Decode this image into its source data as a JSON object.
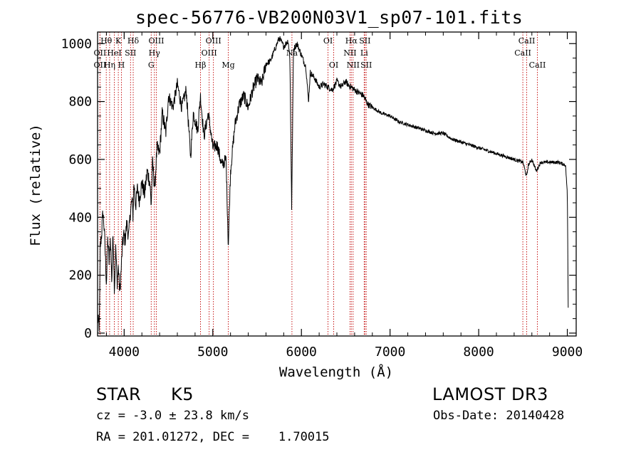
{
  "chart_data": {
    "type": "line",
    "title": "spec-56776-VB200N03V1_sp07-101.fits",
    "xlabel": "Wavelength (Å)",
    "ylabel": "Flux (relative)",
    "xlim": [
      3700,
      9100
    ],
    "ylim": [
      -10,
      1040
    ],
    "xticks": [
      4000,
      5000,
      6000,
      7000,
      8000,
      9000
    ],
    "yticks": [
      0,
      200,
      400,
      600,
      800,
      1000
    ],
    "spectrum_key_points": [
      [
        3700,
        50
      ],
      [
        3720,
        20
      ],
      [
        3730,
        300
      ],
      [
        3745,
        340
      ],
      [
        3760,
        420
      ],
      [
        3775,
        360
      ],
      [
        3790,
        250
      ],
      [
        3800,
        170
      ],
      [
        3815,
        330
      ],
      [
        3830,
        240
      ],
      [
        3845,
        330
      ],
      [
        3860,
        180
      ],
      [
        3875,
        350
      ],
      [
        3890,
        150
      ],
      [
        3905,
        300
      ],
      [
        3920,
        170
      ],
      [
        3935,
        230
      ],
      [
        3950,
        140
      ],
      [
        3965,
        210
      ],
      [
        3980,
        300
      ],
      [
        3995,
        340
      ],
      [
        4010,
        320
      ],
      [
        4030,
        380
      ],
      [
        4050,
        330
      ],
      [
        4070,
        420
      ],
      [
        4090,
        460
      ],
      [
        4100,
        400
      ],
      [
        4110,
        520
      ],
      [
        4130,
        440
      ],
      [
        4150,
        500
      ],
      [
        4170,
        460
      ],
      [
        4200,
        520
      ],
      [
        4230,
        480
      ],
      [
        4260,
        560
      ],
      [
        4290,
        520
      ],
      [
        4305,
        440
      ],
      [
        4320,
        590
      ],
      [
        4345,
        500
      ],
      [
        4370,
        640
      ],
      [
        4400,
        620
      ],
      [
        4430,
        760
      ],
      [
        4470,
        690
      ],
      [
        4500,
        820
      ],
      [
        4550,
        780
      ],
      [
        4600,
        860
      ],
      [
        4650,
        780
      ],
      [
        4700,
        840
      ],
      [
        4730,
        700
      ],
      [
        4750,
        610
      ],
      [
        4780,
        760
      ],
      [
        4830,
        700
      ],
      [
        4860,
        820
      ],
      [
        4900,
        680
      ],
      [
        4950,
        760
      ],
      [
        5000,
        640
      ],
      [
        5050,
        650
      ],
      [
        5100,
        580
      ],
      [
        5150,
        600
      ],
      [
        5175,
        300
      ],
      [
        5200,
        560
      ],
      [
        5250,
        720
      ],
      [
        5300,
        790
      ],
      [
        5350,
        820
      ],
      [
        5400,
        780
      ],
      [
        5450,
        840
      ],
      [
        5500,
        880
      ],
      [
        5550,
        860
      ],
      [
        5600,
        930
      ],
      [
        5650,
        940
      ],
      [
        5700,
        980
      ],
      [
        5750,
        1020
      ],
      [
        5800,
        990
      ],
      [
        5850,
        1010
      ],
      [
        5870,
        950
      ],
      [
        5890,
        430
      ],
      [
        5910,
        980
      ],
      [
        5950,
        1000
      ],
      [
        6000,
        960
      ],
      [
        6050,
        920
      ],
      [
        6080,
        800
      ],
      [
        6100,
        900
      ],
      [
        6150,
        880
      ],
      [
        6200,
        850
      ],
      [
        6250,
        860
      ],
      [
        6300,
        850
      ],
      [
        6350,
        840
      ],
      [
        6400,
        870
      ],
      [
        6450,
        850
      ],
      [
        6500,
        870
      ],
      [
        6520,
        860
      ],
      [
        6560,
        850
      ],
      [
        6600,
        840
      ],
      [
        6650,
        830
      ],
      [
        6700,
        820
      ],
      [
        6750,
        790
      ],
      [
        6800,
        780
      ],
      [
        6900,
        760
      ],
      [
        7000,
        750
      ],
      [
        7100,
        730
      ],
      [
        7200,
        720
      ],
      [
        7300,
        710
      ],
      [
        7400,
        700
      ],
      [
        7500,
        690
      ],
      [
        7600,
        690
      ],
      [
        7700,
        670
      ],
      [
        7800,
        660
      ],
      [
        7900,
        650
      ],
      [
        8000,
        640
      ],
      [
        8100,
        630
      ],
      [
        8200,
        620
      ],
      [
        8300,
        610
      ],
      [
        8400,
        600
      ],
      [
        8500,
        590
      ],
      [
        8540,
        540
      ],
      [
        8560,
        580
      ],
      [
        8600,
        600
      ],
      [
        8650,
        560
      ],
      [
        8700,
        590
      ],
      [
        8800,
        590
      ],
      [
        8900,
        590
      ],
      [
        8980,
        580
      ],
      [
        9000,
        480
      ],
      [
        9010,
        90
      ]
    ],
    "lines": [
      {
        "name": "Hθ",
        "wave": 3798,
        "row": 0
      },
      {
        "name": "OII",
        "wave": 3727,
        "row": 1
      },
      {
        "name": "OII",
        "wave": 3727,
        "row": 2
      },
      {
        "name": "Hη",
        "wave": 3836,
        "row": 2
      },
      {
        "name": "HeI",
        "wave": 3889,
        "row": 1
      },
      {
        "name": "K",
        "wave": 3934,
        "row": 0
      },
      {
        "name": "H",
        "wave": 3969,
        "row": 2
      },
      {
        "name": "SII",
        "wave": 4072,
        "row": 1
      },
      {
        "name": "Hδ",
        "wave": 4102,
        "row": 0
      },
      {
        "name": "OIII",
        "wave": 4363,
        "row": 0
      },
      {
        "name": "Hγ",
        "wave": 4341,
        "row": 1
      },
      {
        "name": "G",
        "wave": 4305,
        "row": 2
      },
      {
        "name": "Hβ",
        "wave": 4861,
        "row": 2
      },
      {
        "name": "OIII",
        "wave": 4959,
        "row": 1
      },
      {
        "name": "OIII",
        "wave": 5007,
        "row": 0
      },
      {
        "name": "Mg",
        "wave": 5175,
        "row": 2
      },
      {
        "name": "Na",
        "wave": 5893,
        "row": 1
      },
      {
        "name": "OI",
        "wave": 6300,
        "row": 0
      },
      {
        "name": "OI",
        "wave": 6364,
        "row": 2
      },
      {
        "name": "NII",
        "wave": 6548,
        "row": 1
      },
      {
        "name": "Hα",
        "wave": 6563,
        "row": 0
      },
      {
        "name": "NII",
        "wave": 6583,
        "row": 2
      },
      {
        "name": "SII",
        "wave": 6716,
        "row": 0
      },
      {
        "name": "Li",
        "wave": 6708,
        "row": 1
      },
      {
        "name": "SII",
        "wave": 6731,
        "row": 2
      },
      {
        "name": "CaII",
        "wave": 8542,
        "row": 0
      },
      {
        "name": "CaII",
        "wave": 8498,
        "row": 1
      },
      {
        "name": "CaII",
        "wave": 8662,
        "row": 2
      }
    ]
  },
  "info": {
    "object_class": "STAR",
    "subclass": "K5",
    "survey": "LAMOST DR3",
    "redshift": "cz = -3.0 ± 23.8 km/s",
    "obs_date": "Obs-Date: 20140428",
    "coords": "RA = 201.01272, DEC =    1.70015"
  },
  "colors": {
    "line_marker": "#c00000",
    "spectrum": "#000000",
    "axes": "#000000"
  }
}
